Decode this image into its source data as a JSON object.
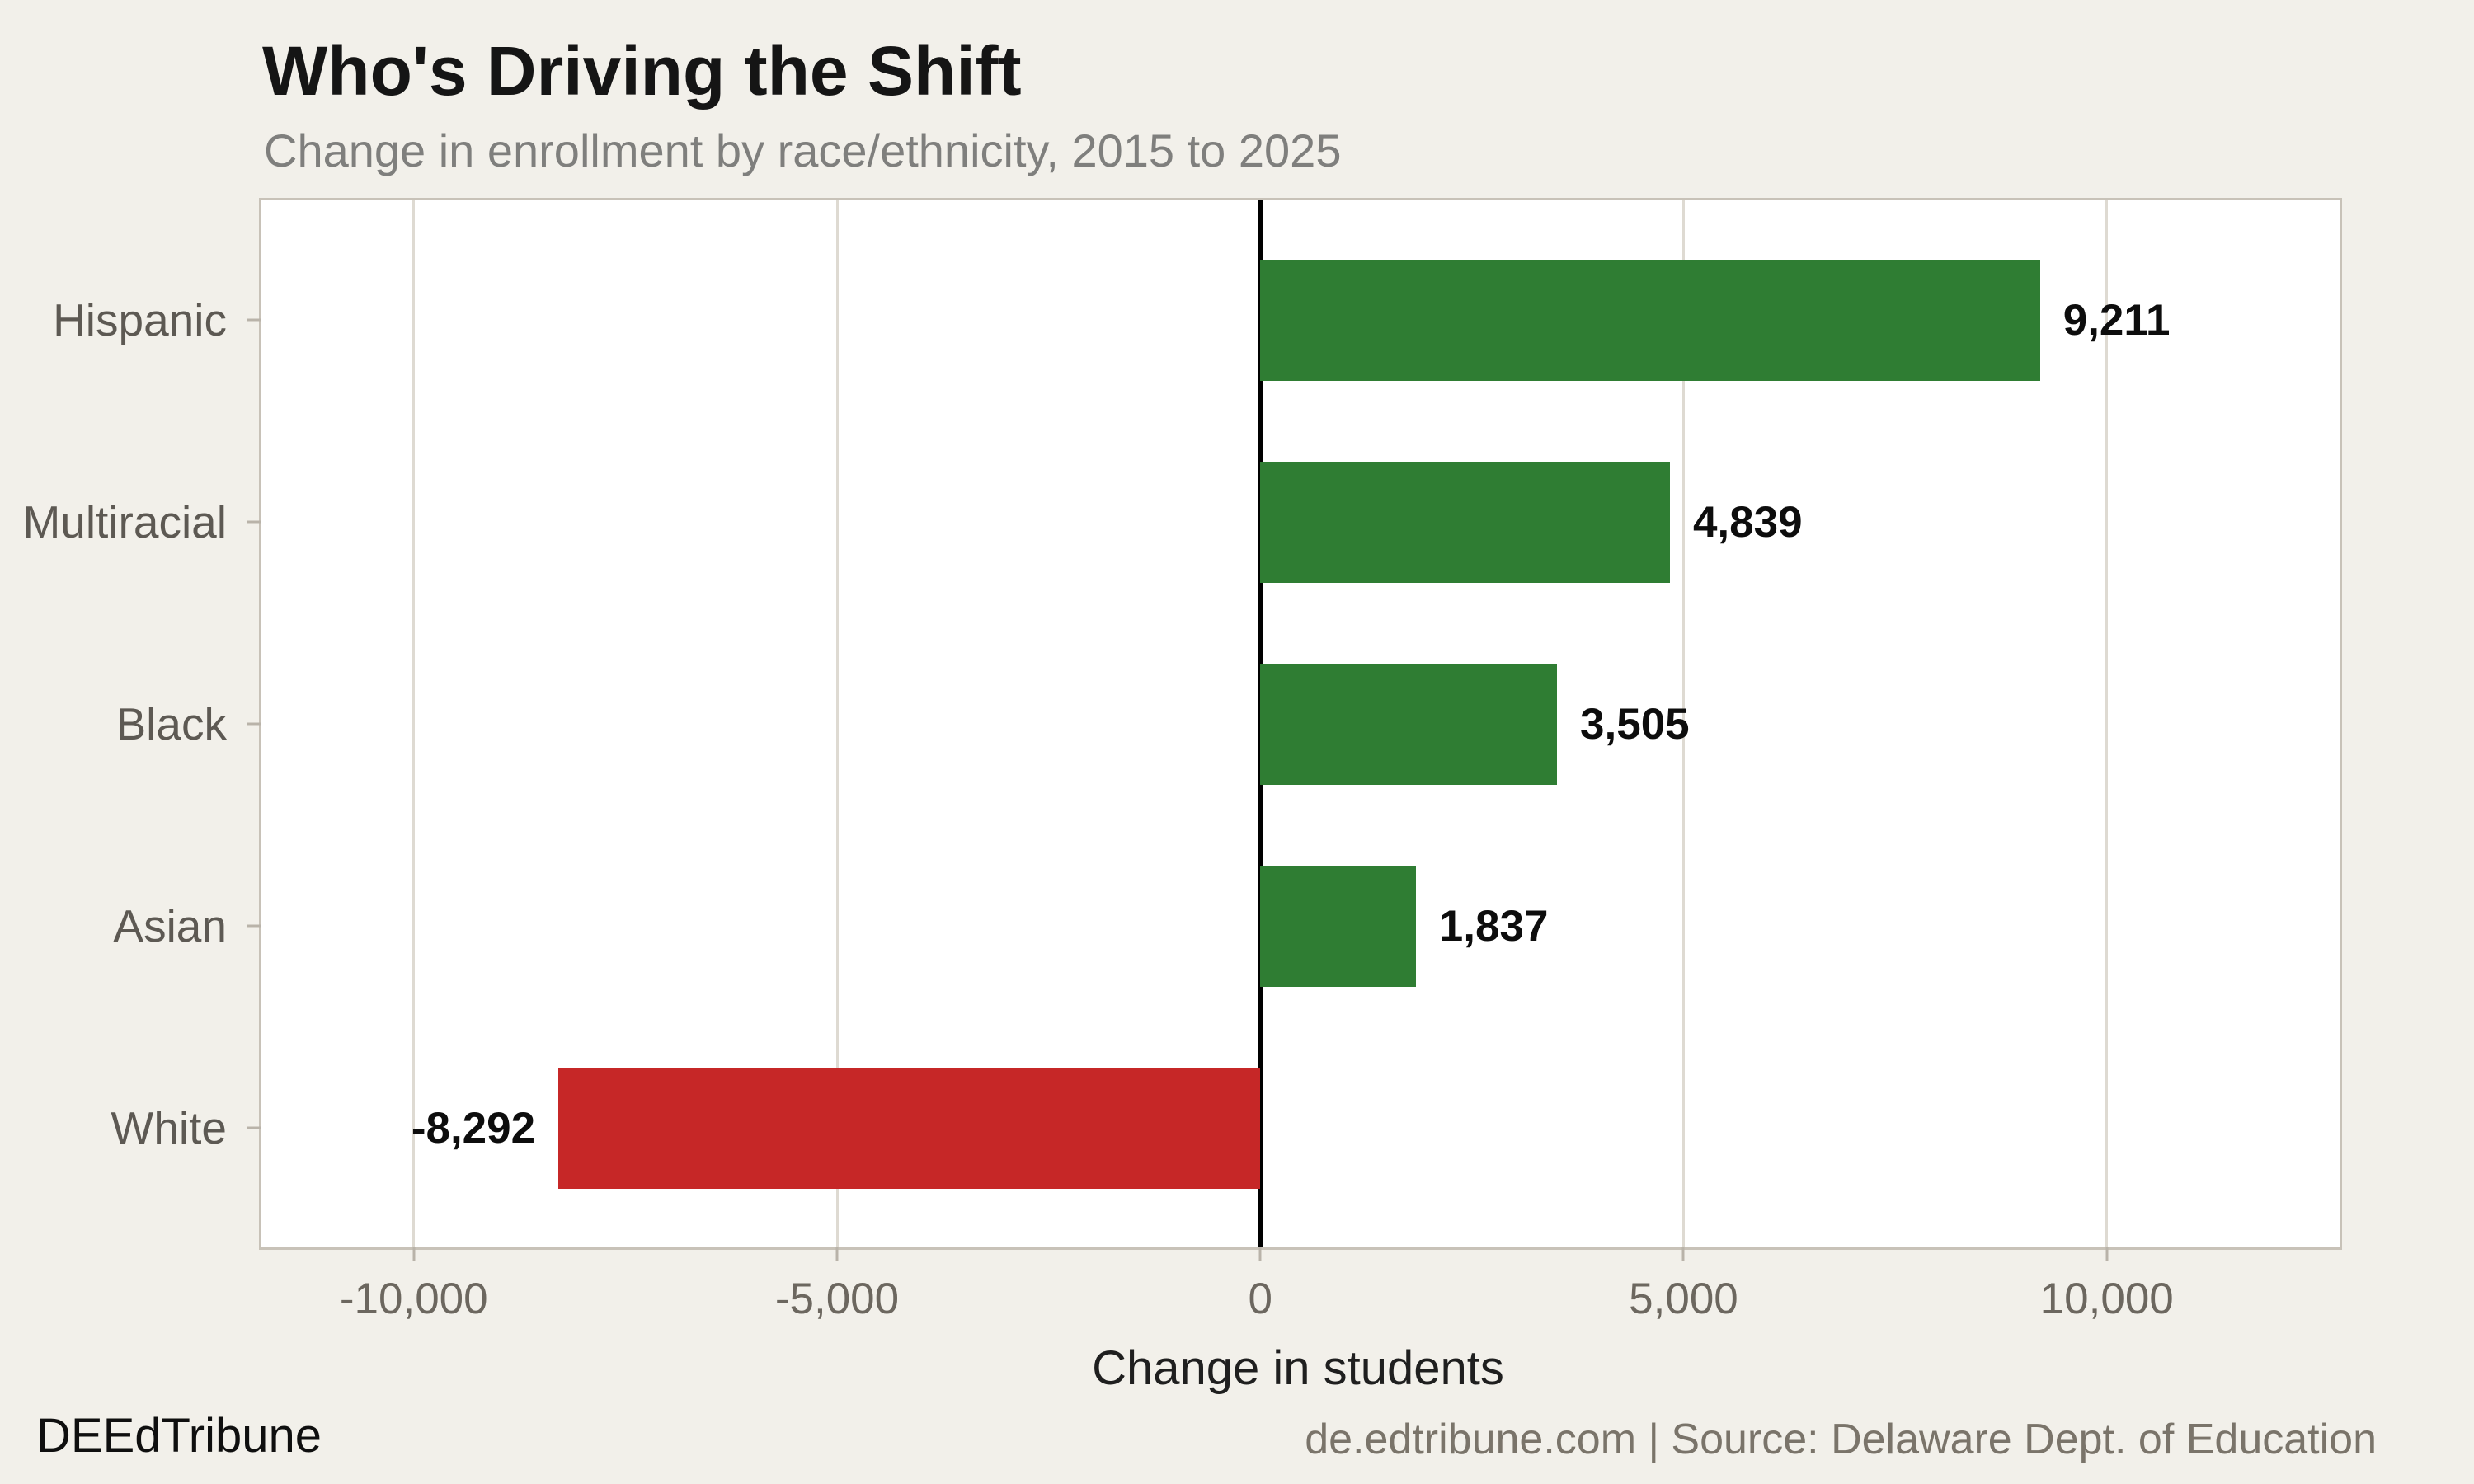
{
  "footer": {
    "brand": "DEEdTribune",
    "source": "de.edtribune.com | Source: Delaware Dept. of Education"
  },
  "chart_data": {
    "type": "bar",
    "orientation": "horizontal",
    "title": "Who's Driving the Shift",
    "subtitle": "Change in enrollment by race/ethnicity, 2015 to 2025",
    "xlabel": "Change in students",
    "categories": [
      "Hispanic",
      "Multiracial",
      "Black",
      "Asian",
      "White"
    ],
    "values": [
      9211,
      4839,
      3505,
      1837,
      -8292
    ],
    "value_labels": [
      "9,211",
      "4,839",
      "3,505",
      "1,837",
      "-8,292"
    ],
    "x_ticks": [
      {
        "value": -10000,
        "label": "-10,000"
      },
      {
        "value": -5000,
        "label": "-5,000"
      },
      {
        "value": 0,
        "label": "0"
      },
      {
        "value": 5000,
        "label": "5,000"
      },
      {
        "value": 10000,
        "label": "10,000"
      }
    ],
    "xlim": [
      -11800,
      12750
    ],
    "grid": true,
    "legend": null,
    "colors": {
      "positive": "#2f7d33",
      "negative": "#c62727",
      "zero_line": "#000000",
      "gridline": "#dedad2",
      "frame": "#c8c2b8",
      "plot_bg": "#ffffff",
      "page_bg": "#f2f0ea",
      "value_label": "#0d0d0d"
    }
  }
}
